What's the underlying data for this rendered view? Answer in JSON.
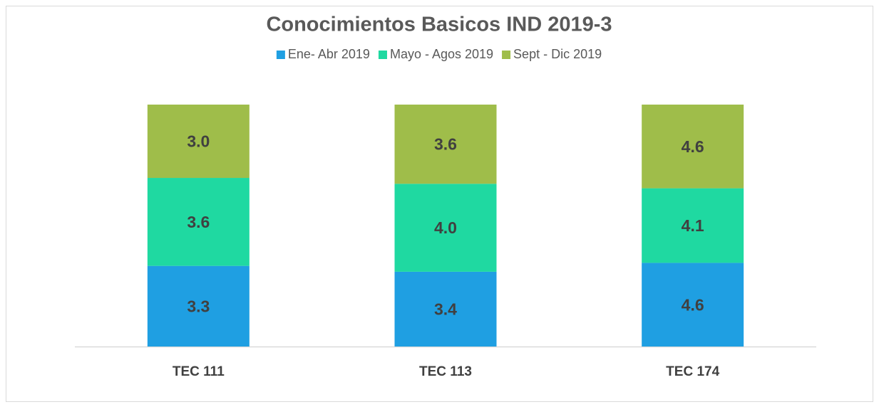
{
  "chart_data": {
    "type": "bar",
    "stacked": true,
    "percent_stacked": true,
    "title": "Conocimientos Basicos IND 2019-3",
    "categories": [
      "TEC 111",
      "TEC 113",
      "TEC 174"
    ],
    "series": [
      {
        "name": "Ene- Abr 2019",
        "color": "#1f9fe2",
        "values": [
          3.3,
          3.4,
          4.6
        ]
      },
      {
        "name": "Mayo - Agos 2019",
        "color": "#1fd9a1",
        "values": [
          3.6,
          4.0,
          4.1
        ]
      },
      {
        "name": "Sept - Dic 2019",
        "color": "#9fbd4a",
        "values": [
          3.0,
          3.6,
          4.6
        ]
      }
    ],
    "legend": "top"
  }
}
